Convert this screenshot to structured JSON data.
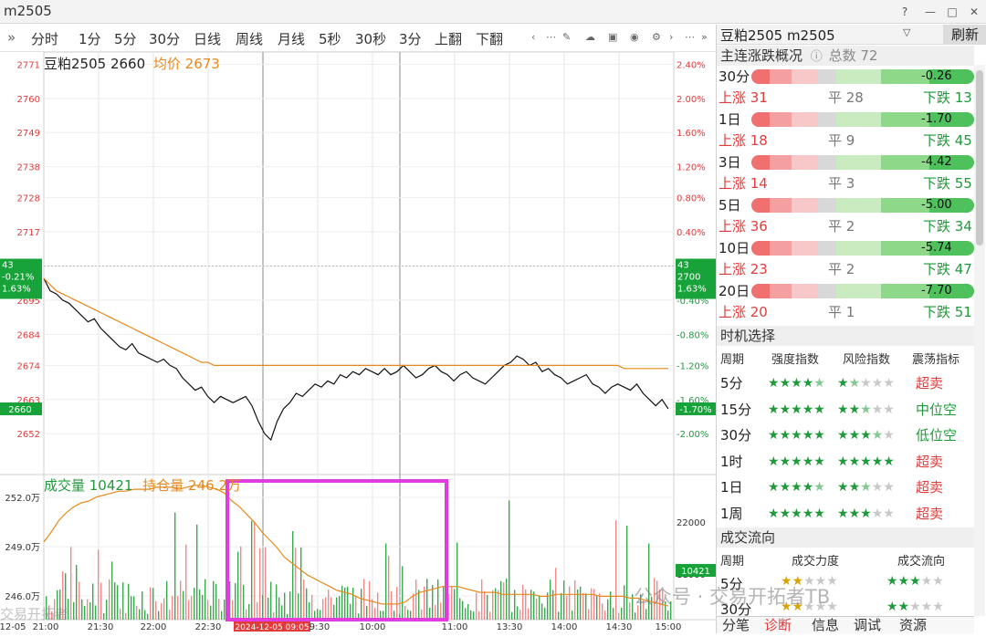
{
  "window": {
    "title": "m2505"
  },
  "toolbar": {
    "items": [
      "分时",
      "1分",
      "5分",
      "30分",
      "日线",
      "周线",
      "月线",
      "5秒",
      "30秒",
      "3分",
      "上翻",
      "下翻"
    ],
    "expand_icon": "»"
  },
  "chart_header": {
    "name_code": "豆粕2505 2660",
    "avg_label": "均价 2673"
  },
  "chart_data": {
    "type": "line",
    "price_axis": {
      "ticks": [
        2771,
        2760,
        2749,
        2738,
        2728,
        2717,
        2706,
        2695,
        2684,
        2674,
        2663,
        2652
      ],
      "pct_ticks": [
        "2.40%",
        "2.00%",
        "1.60%",
        "1.20%",
        "0.80%",
        "0.40%",
        "0.00%",
        "-0.40%",
        "-0.80%",
        "-1.20%",
        "-1.60%",
        "-2.00%"
      ],
      "prev_close": 2706,
      "ylim": [
        2645,
        2772
      ]
    },
    "time_axis": [
      "12-05",
      "21:00",
      "21:30",
      "22:00",
      "22:30",
      "2024-12-05 09:05",
      "9:30",
      "10:00",
      "11:00",
      "13:30",
      "14:00",
      "14:30",
      "15:00"
    ],
    "series": [
      {
        "name": "豆粕2505",
        "color": "#111111",
        "values": [
          2702,
          2698,
          2697,
          2695,
          2694,
          2692,
          2690,
          2688,
          2689,
          2686,
          2684,
          2682,
          2680,
          2679,
          2681,
          2678,
          2677,
          2676,
          2675,
          2676,
          2674,
          2673,
          2670,
          2668,
          2666,
          2667,
          2664,
          2662,
          2664,
          2663,
          2662,
          2663,
          2664,
          2661,
          2656,
          2652,
          2650,
          2656,
          2660,
          2662,
          2665,
          2664,
          2666,
          2668,
          2667,
          2669,
          2668,
          2671,
          2670,
          2672,
          2671,
          2673,
          2672,
          2671,
          2673,
          2671,
          2672,
          2674,
          2672,
          2670,
          2671,
          2673,
          2674,
          2672,
          2671,
          2669,
          2671,
          2672,
          2670,
          2669,
          2668,
          2670,
          2672,
          2674,
          2675,
          2677,
          2676,
          2674,
          2675,
          2672,
          2673,
          2671,
          2670,
          2668,
          2669,
          2670,
          2671,
          2668,
          2667,
          2665,
          2667,
          2668,
          2667,
          2666,
          2668,
          2665,
          2663,
          2661,
          2663,
          2660
        ]
      },
      {
        "name": "均价",
        "color": "#e6891c",
        "values": [
          2702,
          2700,
          2698,
          2697,
          2696,
          2695,
          2694,
          2693,
          2692,
          2691,
          2690,
          2689,
          2688,
          2687,
          2686,
          2685,
          2684,
          2683,
          2682,
          2681,
          2680,
          2679,
          2678,
          2677,
          2676,
          2675,
          2675,
          2674,
          2674,
          2674,
          2674,
          2674,
          2674,
          2674,
          2674,
          2674,
          2674,
          2674,
          2674,
          2674,
          2674,
          2674,
          2674,
          2674,
          2674,
          2674,
          2674,
          2674,
          2674,
          2674,
          2674,
          2674,
          2674,
          2674,
          2674,
          2674,
          2674,
          2674,
          2674,
          2674,
          2674,
          2674,
          2674,
          2674,
          2674,
          2674,
          2674,
          2674,
          2674,
          2674,
          2674,
          2674,
          2674,
          2674,
          2674,
          2674,
          2674,
          2674,
          2674,
          2674,
          2674,
          2674,
          2674,
          2674,
          2674,
          2674,
          2674,
          2674,
          2674,
          2674,
          2674,
          2674,
          2673,
          2673,
          2673,
          2673,
          2673,
          2673,
          2673,
          2673
        ]
      }
    ],
    "left_box": {
      "line1": "43",
      "line2": "-0.21%",
      "line3": "1.63%"
    },
    "right_box": {
      "line1": "43",
      "line2": "2700",
      "line3": "1.63%"
    },
    "last_price_tag": "2660",
    "last_pct_tag": "-1.70%",
    "volume": {
      "label_vol": "成交量 10421",
      "label_oi": "持仓量 246.2万",
      "left_ticks": [
        "252.0万",
        "249.0万",
        "246.0万"
      ],
      "right_ticks": [
        "22000",
        "11000"
      ],
      "right_tag": "10421",
      "oi_values": [
        249.5,
        250.0,
        250.6,
        251.0,
        251.3,
        251.5,
        251.6,
        251.8,
        251.9,
        252.0,
        252.1,
        252.1,
        252.2,
        252.2,
        252.2,
        252.3,
        252.3,
        252.3,
        252.2,
        252.3,
        252.4,
        252.4,
        252.3,
        252.2,
        252.0,
        251.6,
        251.3,
        250.9,
        250.5,
        250.0,
        249.6,
        249.2,
        248.7,
        248.4,
        248.1,
        247.8,
        247.6,
        247.4,
        247.2,
        247.0,
        246.9,
        246.8,
        246.6,
        246.5,
        246.4,
        246.3,
        246.3,
        246.3,
        246.4,
        246.7,
        246.9,
        247.0,
        247.1,
        247.2,
        247.2,
        247.2,
        247.1,
        247.0,
        246.9,
        246.9,
        246.9,
        246.8,
        246.8,
        246.8,
        246.8,
        246.8,
        246.7,
        246.7,
        246.8,
        246.8,
        246.8,
        246.8,
        246.8,
        246.8,
        246.7,
        246.7,
        246.7,
        246.7,
        246.6,
        246.6,
        246.5,
        246.4,
        246.3,
        246.2
      ]
    },
    "highlight_box": true
  },
  "right_panel": {
    "title": "豆粕2505 m2505",
    "refresh": "刷新",
    "section1": {
      "title": "主连涨跌概况",
      "total": "总数 72"
    },
    "periods": [
      {
        "label": "30分",
        "value": "-0.26",
        "up": "上涨 31",
        "flat": "平 28",
        "down": "下跌 13"
      },
      {
        "label": "1日",
        "value": "-1.70",
        "up": "上涨 18",
        "flat": "平 9",
        "down": "下跌 45"
      },
      {
        "label": "3日",
        "value": "-4.42",
        "up": "上涨 14",
        "flat": "平 3",
        "down": "下跌 55"
      },
      {
        "label": "5日",
        "value": "-5.00",
        "up": "上涨 36",
        "flat": "平 2",
        "down": "下跌 34"
      },
      {
        "label": "10日",
        "value": "-5.74",
        "up": "上涨 23",
        "flat": "平 2",
        "down": "下跌 47"
      },
      {
        "label": "20日",
        "value": "-7.70",
        "up": "上涨 20",
        "flat": "平 1",
        "down": "下跌 51"
      }
    ],
    "section2": {
      "title": "时机选择",
      "col_period": "周期",
      "col_strength": "强度指数",
      "col_risk": "风险指数",
      "col_osc": "震荡指标"
    },
    "timing": [
      {
        "period": "5分",
        "strength": 4.5,
        "risk": 1.5,
        "signal": "超卖",
        "color": "#e23b3b"
      },
      {
        "period": "15分",
        "strength": 5,
        "risk": 2.5,
        "signal": "中位空",
        "color": "#1f9a3a"
      },
      {
        "period": "30分",
        "strength": 5,
        "risk": 3.5,
        "signal": "低位空",
        "color": "#1f9a3a"
      },
      {
        "period": "1时",
        "strength": 5,
        "risk": 5,
        "signal": "超卖",
        "color": "#e23b3b"
      },
      {
        "period": "1日",
        "strength": 4.5,
        "risk": 2.5,
        "signal": "超卖",
        "color": "#e23b3b"
      },
      {
        "period": "1周",
        "strength": 5,
        "risk": 3,
        "signal": "超卖",
        "color": "#e23b3b"
      }
    ],
    "section3": {
      "title": "成交流向",
      "col_period": "周期",
      "col_force": "成交力度",
      "col_flow": "成交流向"
    },
    "flows": [
      {
        "period": "5分"
      },
      {
        "period": "30分"
      }
    ],
    "tabs": [
      "分笔",
      "诊断",
      "信息",
      "调试",
      "资源"
    ],
    "active_tab": "诊断"
  },
  "watermark": "公众号 · 交易开拓者TB",
  "watermark2": "交易开拓者"
}
